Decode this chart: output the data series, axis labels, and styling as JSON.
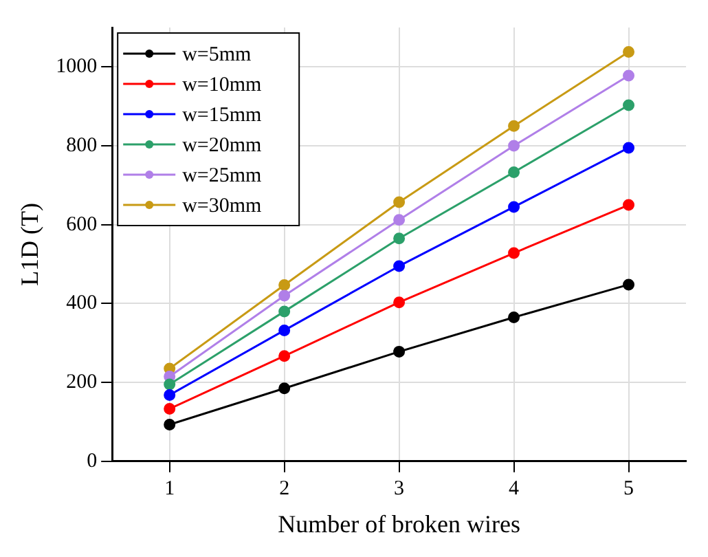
{
  "chart_data": {
    "type": "line",
    "xlabel": "Number of broken wires",
    "ylabel": "L1D (T)",
    "x": [
      1,
      2,
      3,
      4,
      5
    ],
    "series": [
      {
        "name": "w=5mm",
        "color": "#000000",
        "values": [
          93,
          185,
          278,
          365,
          448
        ]
      },
      {
        "name": "w=10mm",
        "color": "#ff0000",
        "values": [
          133,
          267,
          403,
          528,
          650
        ]
      },
      {
        "name": "w=15mm",
        "color": "#0000ff",
        "values": [
          168,
          332,
          495,
          645,
          795
        ]
      },
      {
        "name": "w=20mm",
        "color": "#2ca06a",
        "values": [
          195,
          380,
          565,
          733,
          903
        ]
      },
      {
        "name": "w=25mm",
        "color": "#b07fe8",
        "values": [
          215,
          420,
          612,
          800,
          978
        ]
      },
      {
        "name": "w=30mm",
        "color": "#c89a14",
        "values": [
          235,
          447,
          657,
          850,
          1038
        ]
      }
    ],
    "xlim": [
      0.5,
      5.5
    ],
    "xticks": [
      1,
      2,
      3,
      4,
      5
    ],
    "ylim": [
      0,
      1100
    ],
    "yticks": [
      0,
      200,
      400,
      600,
      800,
      1000
    ],
    "grid": true,
    "legend": "top left",
    "marker": "circle",
    "line_style": "solid"
  }
}
